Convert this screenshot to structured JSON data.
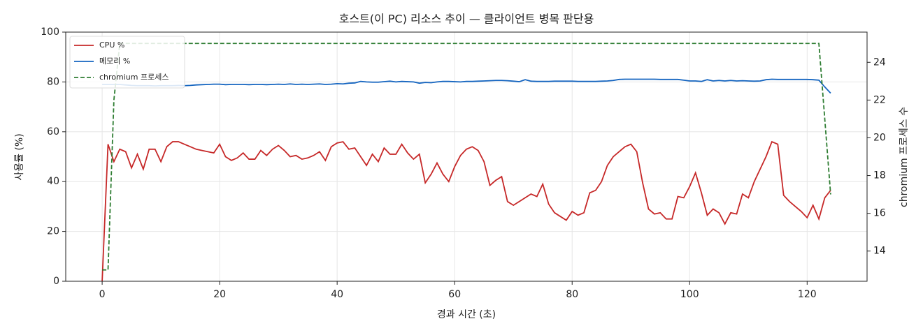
{
  "chart_data": {
    "type": "line",
    "title": "호스트(이 PC) 리소스 추이 — 클라이언트 병목 판단용",
    "xlabel": "경과 시간 (초)",
    "ylabel": "사용률 (%)",
    "y2label": "chromium 프로세스 수",
    "x": [
      0,
      1,
      2,
      3,
      4,
      5,
      6,
      7,
      8,
      9,
      10,
      11,
      12,
      13,
      14,
      15,
      16,
      17,
      18,
      19,
      20,
      21,
      22,
      23,
      24,
      25,
      26,
      27,
      28,
      29,
      30,
      31,
      32,
      33,
      34,
      35,
      36,
      37,
      38,
      39,
      40,
      41,
      42,
      43,
      44,
      45,
      46,
      47,
      48,
      49,
      50,
      51,
      52,
      53,
      54,
      55,
      56,
      57,
      58,
      59,
      60,
      61,
      62,
      63,
      64,
      65,
      66,
      67,
      68,
      69,
      70,
      71,
      72,
      73,
      74,
      75,
      76,
      77,
      78,
      79,
      80,
      81,
      82,
      83,
      84,
      85,
      86,
      87,
      88,
      89,
      90,
      91,
      92,
      93,
      94,
      95,
      96,
      97,
      98,
      99,
      100,
      101,
      102,
      103,
      104,
      105,
      106,
      107,
      108,
      109,
      110,
      111,
      112,
      113,
      114,
      115,
      116,
      117,
      118,
      119,
      120,
      121,
      122,
      123,
      124
    ],
    "series": [
      {
        "name": "CPU %",
        "color": "#c62828",
        "linestyle": "solid",
        "values": [
          0,
          55,
          48,
          53,
          52,
          45.5,
          51,
          45,
          53,
          53,
          48,
          54,
          56,
          56,
          55,
          54,
          53,
          52.5,
          52,
          51.5,
          55,
          50,
          48.5,
          49.5,
          51.5,
          49,
          49,
          52.5,
          50.5,
          53,
          54.5,
          52.5,
          50,
          50.5,
          49,
          49.5,
          50.5,
          52,
          48.5,
          54,
          55.5,
          56,
          53,
          53.5,
          50,
          46.5,
          51,
          48,
          53.5,
          51,
          51,
          55,
          51.5,
          49,
          51,
          39.5,
          43,
          47.5,
          43,
          40,
          46,
          50.5,
          53,
          54,
          52.5,
          48,
          38.5,
          40.5,
          42,
          32,
          30.5,
          32,
          33.5,
          35,
          34,
          39,
          31,
          27.5,
          26,
          24.5,
          28,
          26.5,
          27.5,
          35.5,
          36.5,
          40,
          46.5,
          50,
          52,
          54,
          55,
          52,
          39.5,
          29,
          27,
          27.5,
          25,
          25,
          34,
          33.5,
          38,
          43.5,
          35.5,
          26.5,
          29,
          27.5,
          23,
          27.5,
          27,
          35,
          33.5,
          40,
          45,
          50,
          56,
          55,
          34.5,
          32,
          30,
          28,
          25.5,
          30.5,
          25,
          33.5,
          36.5
        ]
      },
      {
        "name": "메모리 %",
        "color": "#1565c0",
        "linestyle": "solid",
        "values": [
          79,
          79,
          79,
          79,
          78.8,
          78.6,
          78.5,
          78.5,
          78.5,
          78.4,
          78.5,
          78.5,
          78.5,
          78.6,
          78.5,
          78.6,
          78.8,
          78.9,
          79,
          79.1,
          79.1,
          78.9,
          79,
          79,
          79,
          78.9,
          79,
          79,
          78.9,
          79,
          79.1,
          79,
          79.2,
          79,
          79.1,
          79,
          79.1,
          79.2,
          79,
          79.1,
          79.3,
          79.2,
          79.5,
          79.6,
          80.2,
          80,
          79.9,
          79.9,
          80.1,
          80.3,
          80,
          80.2,
          80.1,
          80,
          79.5,
          79.8,
          79.7,
          80,
          80.2,
          80.2,
          80.1,
          80,
          80.2,
          80.2,
          80.3,
          80.4,
          80.5,
          80.6,
          80.6,
          80.5,
          80.3,
          80.1,
          80.9,
          80.3,
          80.2,
          80.2,
          80.2,
          80.3,
          80.3,
          80.3,
          80.3,
          80.2,
          80.2,
          80.2,
          80.2,
          80.3,
          80.4,
          80.6,
          81,
          81.1,
          81.1,
          81.1,
          81.1,
          81.1,
          81.1,
          81,
          81,
          81,
          81,
          80.7,
          80.4,
          80.4,
          80.2,
          80.9,
          80.4,
          80.6,
          80.4,
          80.6,
          80.4,
          80.5,
          80.4,
          80.3,
          80.4,
          80.9,
          81.1,
          81,
          81,
          81,
          81,
          81,
          81,
          80.9,
          80.7,
          78,
          75.5
        ]
      },
      {
        "name": "chromium 프로세스",
        "color": "#2e7d32",
        "linestyle": "dashed",
        "axis": "y2",
        "values": [
          13,
          13,
          22,
          25,
          25,
          25,
          25,
          25,
          25,
          25,
          25,
          25,
          25,
          25,
          25,
          25,
          25,
          25,
          25,
          25,
          25,
          25,
          25,
          25,
          25,
          25,
          25,
          25,
          25,
          25,
          25,
          25,
          25,
          25,
          25,
          25,
          25,
          25,
          25,
          25,
          25,
          25,
          25,
          25,
          25,
          25,
          25,
          25,
          25,
          25,
          25,
          25,
          25,
          25,
          25,
          25,
          25,
          25,
          25,
          25,
          25,
          25,
          25,
          25,
          25,
          25,
          25,
          25,
          25,
          25,
          25,
          25,
          25,
          25,
          25,
          25,
          25,
          25,
          25,
          25,
          25,
          25,
          25,
          25,
          25,
          25,
          25,
          25,
          25,
          25,
          25,
          25,
          25,
          25,
          25,
          25,
          25,
          25,
          25,
          25,
          25,
          25,
          25,
          25,
          25,
          25,
          25,
          25,
          25,
          25,
          25,
          25,
          25,
          25,
          25,
          25,
          25,
          25,
          25,
          25,
          25,
          25,
          25,
          21,
          17
        ]
      }
    ],
    "xlim": [
      -6.2,
      130.2
    ],
    "xticks": [
      0,
      20,
      40,
      60,
      80,
      100,
      120
    ],
    "ylim": [
      0,
      100
    ],
    "yticks": [
      0,
      20,
      40,
      60,
      80,
      100
    ],
    "y2lim": [
      12.4,
      25.6
    ],
    "y2ticks": [
      14,
      16,
      18,
      20,
      22,
      24
    ],
    "grid": true,
    "legend": "upper left"
  }
}
